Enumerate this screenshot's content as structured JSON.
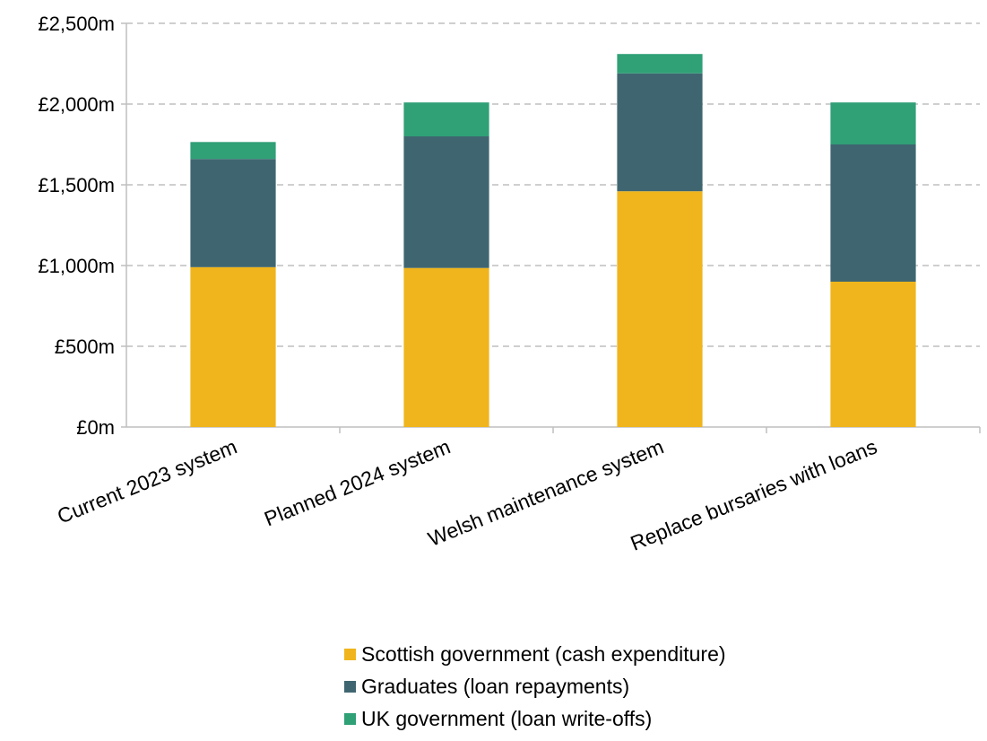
{
  "chart_data": {
    "type": "bar",
    "stacked": true,
    "title": "",
    "xlabel": "",
    "ylabel": "",
    "ylim": [
      0,
      2500
    ],
    "yticks": [
      0,
      500,
      1000,
      1500,
      2000,
      2500
    ],
    "ytick_labels": [
      "£0m",
      "£500m",
      "£1,000m",
      "£1,500m",
      "£2,000m",
      "£2,500m"
    ],
    "categories": [
      "Current 2023 system",
      "Planned 2024 system",
      "Welsh maintenance system",
      "Replace bursaries with loans"
    ],
    "series": [
      {
        "name": "Scottish government (cash expenditure)",
        "color": "#f0b51c",
        "values": [
          990,
          985,
          1460,
          900
        ]
      },
      {
        "name": "Graduates (loan repayments)",
        "color": "#3f6670",
        "values": [
          670,
          815,
          730,
          850
        ]
      },
      {
        "name": "UK government (loan write-offs)",
        "color": "#30a077",
        "values": [
          105,
          210,
          120,
          260
        ]
      }
    ],
    "grid": true,
    "legend_position": "bottom"
  }
}
